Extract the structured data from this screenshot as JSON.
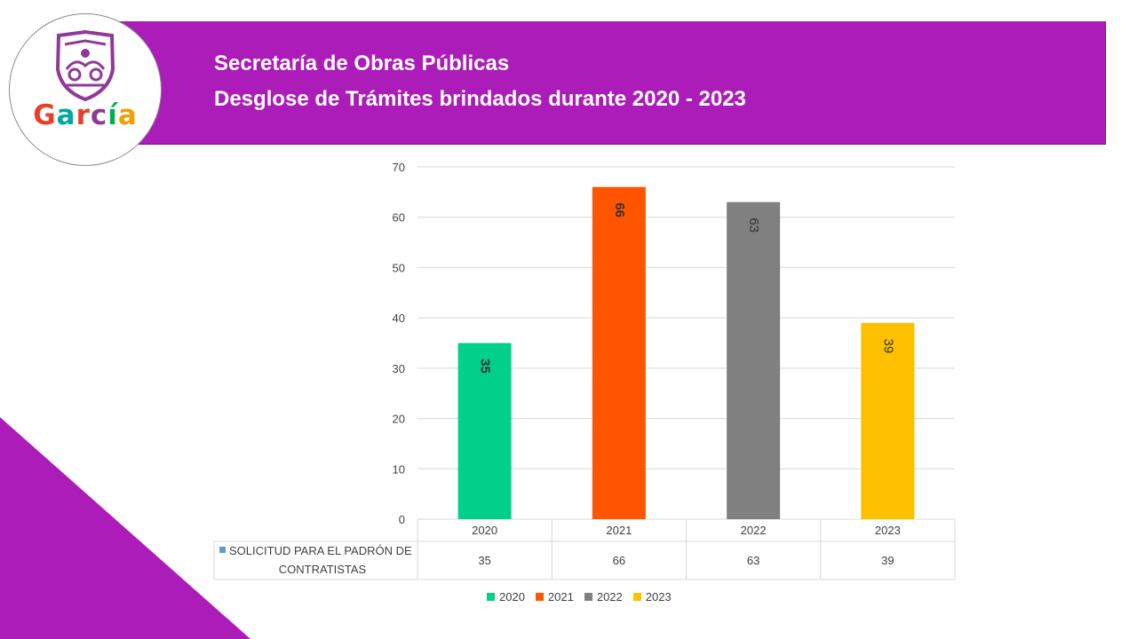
{
  "header": {
    "title_line1": "Secretaría de Obras Públicas",
    "title_line2": "Desglose de Trámites brindados durante 2020 - 2023",
    "logo_text": "García",
    "banner_color": "#ac1cb8"
  },
  "chart_data": {
    "type": "bar",
    "categories": [
      "2020",
      "2021",
      "2022",
      "2023"
    ],
    "series": [
      {
        "name": "SOLICITUD PARA EL PADRÓN DE CONTRATISTAS",
        "values": [
          35,
          66,
          63,
          39
        ]
      }
    ],
    "bar_colors": [
      "#00d08a",
      "#ff5500",
      "#808080",
      "#ffc000"
    ],
    "label_colors": [
      "#333333",
      "#333333",
      "#333333",
      "#333333"
    ],
    "ylim": [
      0,
      70
    ],
    "yticks": [
      0,
      10,
      20,
      30,
      40,
      50,
      60,
      70
    ],
    "grid": true,
    "data_table": true,
    "legend": {
      "position": "bottom",
      "entries": [
        "2020",
        "2021",
        "2022",
        "2023"
      ]
    }
  }
}
